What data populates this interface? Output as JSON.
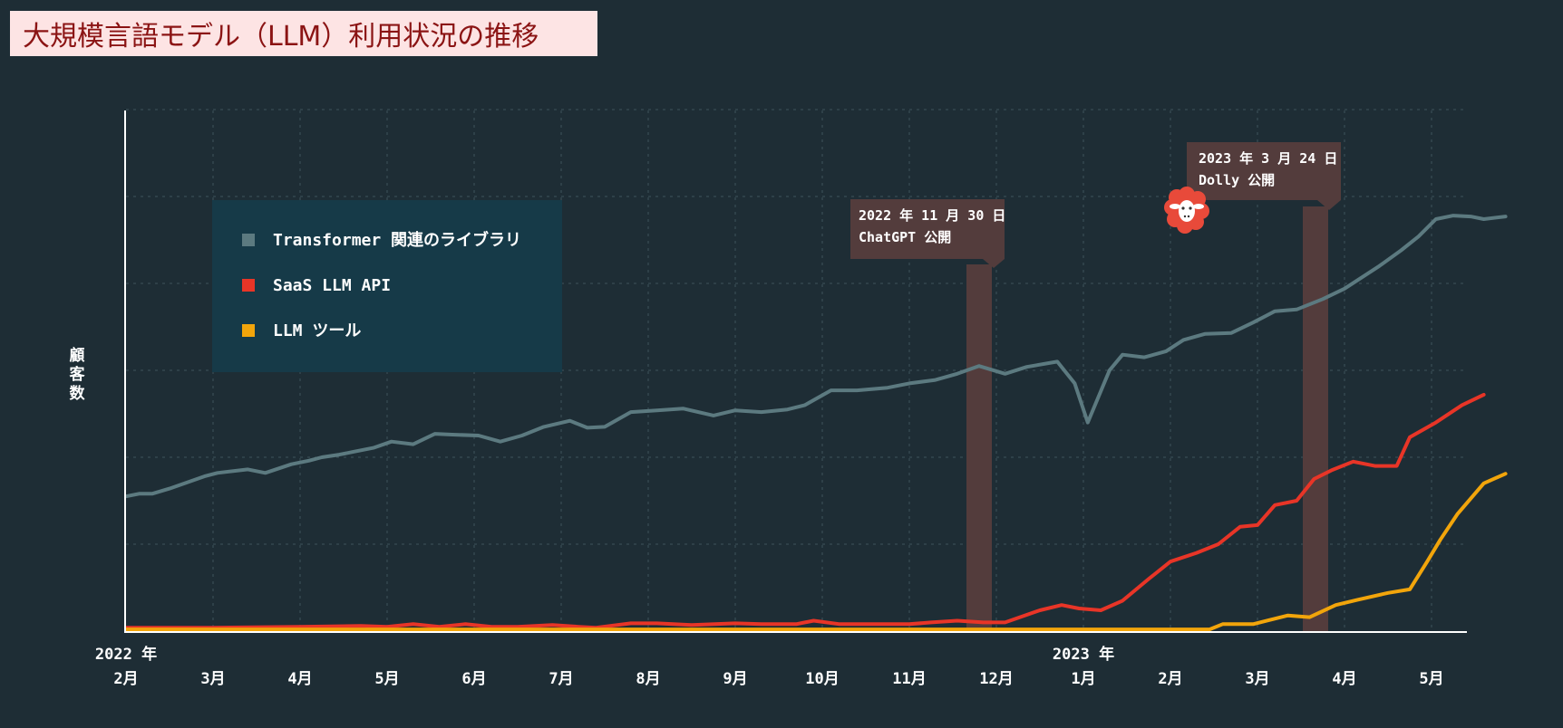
{
  "title": "大規模言語モデル（LLM）利用状況の推移",
  "chart_data": {
    "type": "line",
    "ylabel": "顧客数",
    "x_ticks": [
      "2月",
      "3月",
      "4月",
      "5月",
      "6月",
      "7月",
      "8月",
      "9月",
      "10月",
      "11月",
      "12月",
      "1月",
      "2月",
      "3月",
      "4月",
      "5月"
    ],
    "year_labels": [
      {
        "label": "2022 年",
        "at": 0
      },
      {
        "label": "2023 年",
        "at": 11
      }
    ],
    "xlim": [
      0,
      15.3
    ],
    "ylim": [
      0,
      6
    ],
    "grid": true,
    "legend_position": "upper-left",
    "series": [
      {
        "name": "Transformer 関連のライブラリ",
        "color": "#5c7a80",
        "points": [
          [
            0,
            1.55
          ],
          [
            0.15,
            1.58
          ],
          [
            0.3,
            1.58
          ],
          [
            0.5,
            1.64
          ],
          [
            0.9,
            1.78
          ],
          [
            1.05,
            1.82
          ],
          [
            1.4,
            1.86
          ],
          [
            1.6,
            1.82
          ],
          [
            1.9,
            1.92
          ],
          [
            2.1,
            1.96
          ],
          [
            2.25,
            2.0
          ],
          [
            2.45,
            2.03
          ],
          [
            2.6,
            2.06
          ],
          [
            2.85,
            2.11
          ],
          [
            3.05,
            2.18
          ],
          [
            3.3,
            2.15
          ],
          [
            3.55,
            2.27
          ],
          [
            3.75,
            2.26
          ],
          [
            4.05,
            2.25
          ],
          [
            4.3,
            2.18
          ],
          [
            4.55,
            2.25
          ],
          [
            4.8,
            2.35
          ],
          [
            5.1,
            2.42
          ],
          [
            5.3,
            2.34
          ],
          [
            5.5,
            2.35
          ],
          [
            5.8,
            2.52
          ],
          [
            6.1,
            2.54
          ],
          [
            6.4,
            2.56
          ],
          [
            6.75,
            2.48
          ],
          [
            7.0,
            2.54
          ],
          [
            7.3,
            2.52
          ],
          [
            7.6,
            2.55
          ],
          [
            7.8,
            2.6
          ],
          [
            8.1,
            2.77
          ],
          [
            8.4,
            2.77
          ],
          [
            8.75,
            2.8
          ],
          [
            9.0,
            2.85
          ],
          [
            9.3,
            2.89
          ],
          [
            9.55,
            2.96
          ],
          [
            9.8,
            3.05
          ],
          [
            10.1,
            2.96
          ],
          [
            10.35,
            3.04
          ],
          [
            10.7,
            3.1
          ],
          [
            10.9,
            2.85
          ],
          [
            11.05,
            2.4
          ],
          [
            11.3,
            3.0
          ],
          [
            11.45,
            3.18
          ],
          [
            11.7,
            3.15
          ],
          [
            11.95,
            3.22
          ],
          [
            12.15,
            3.35
          ],
          [
            12.4,
            3.42
          ],
          [
            12.7,
            3.43
          ],
          [
            12.95,
            3.55
          ],
          [
            13.2,
            3.68
          ],
          [
            13.45,
            3.7
          ],
          [
            13.75,
            3.82
          ],
          [
            14.0,
            3.94
          ],
          [
            14.4,
            4.2
          ],
          [
            14.65,
            4.38
          ],
          [
            14.85,
            4.54
          ],
          [
            15.05,
            4.74
          ],
          [
            15.25,
            4.78
          ],
          [
            15.45,
            4.77
          ],
          [
            15.6,
            4.74
          ],
          [
            15.85,
            4.77
          ]
        ]
      },
      {
        "name": "SaaS LLM API",
        "color": "#e83527",
        "points": [
          [
            0,
            0.04
          ],
          [
            1.0,
            0.04
          ],
          [
            2.0,
            0.05
          ],
          [
            2.7,
            0.06
          ],
          [
            3.0,
            0.05
          ],
          [
            3.3,
            0.08
          ],
          [
            3.6,
            0.05
          ],
          [
            3.9,
            0.08
          ],
          [
            4.2,
            0.05
          ],
          [
            4.5,
            0.05
          ],
          [
            4.9,
            0.07
          ],
          [
            5.2,
            0.05
          ],
          [
            5.4,
            0.04
          ],
          [
            5.8,
            0.09
          ],
          [
            6.1,
            0.09
          ],
          [
            6.5,
            0.07
          ],
          [
            7.0,
            0.09
          ],
          [
            7.3,
            0.08
          ],
          [
            7.7,
            0.08
          ],
          [
            7.9,
            0.12
          ],
          [
            8.2,
            0.08
          ],
          [
            8.6,
            0.08
          ],
          [
            9.0,
            0.08
          ],
          [
            9.25,
            0.1
          ],
          [
            9.55,
            0.12
          ],
          [
            9.85,
            0.1
          ],
          [
            10.1,
            0.1
          ],
          [
            10.5,
            0.24
          ],
          [
            10.75,
            0.3
          ],
          [
            10.95,
            0.26
          ],
          [
            11.2,
            0.24
          ],
          [
            11.45,
            0.35
          ],
          [
            11.75,
            0.6
          ],
          [
            12.0,
            0.8
          ],
          [
            12.3,
            0.9
          ],
          [
            12.55,
            1.0
          ],
          [
            12.8,
            1.2
          ],
          [
            13.0,
            1.22
          ],
          [
            13.2,
            1.45
          ],
          [
            13.45,
            1.5
          ],
          [
            13.65,
            1.75
          ],
          [
            13.85,
            1.85
          ],
          [
            14.1,
            1.95
          ],
          [
            14.35,
            1.9
          ],
          [
            14.6,
            1.9
          ],
          [
            14.75,
            2.23
          ],
          [
            15.05,
            2.4
          ],
          [
            15.35,
            2.6
          ],
          [
            15.6,
            2.72
          ]
        ]
      },
      {
        "name": "LLM ツール",
        "color": "#f2a50b",
        "points": [
          [
            0,
            0.02
          ],
          [
            12.45,
            0.02
          ],
          [
            12.6,
            0.08
          ],
          [
            12.95,
            0.08
          ],
          [
            13.35,
            0.18
          ],
          [
            13.6,
            0.16
          ],
          [
            13.9,
            0.3
          ],
          [
            14.15,
            0.36
          ],
          [
            14.5,
            0.44
          ],
          [
            14.75,
            0.48
          ],
          [
            14.95,
            0.8
          ],
          [
            15.1,
            1.05
          ],
          [
            15.3,
            1.35
          ],
          [
            15.6,
            1.7
          ],
          [
            15.85,
            1.81
          ]
        ]
      }
    ],
    "annotations": [
      {
        "label_line1": "2022 年 11 月 30 日",
        "label_line2": "ChatGPT 公開",
        "x": 9.95
      },
      {
        "label_line1": "2023 年 3 月 24 日",
        "label_line2": "Dolly 公開",
        "x": 13.8
      }
    ]
  },
  "colors": {
    "background": "#1e2d35",
    "legend_bg": "#163a48",
    "annotation": "#533c3c",
    "axis": "#ffffff",
    "grid": "#3f535b",
    "title_bg": "#fde4e4",
    "title_text": "#8b1414"
  },
  "icons": {
    "dolly": "sheep-icon"
  }
}
